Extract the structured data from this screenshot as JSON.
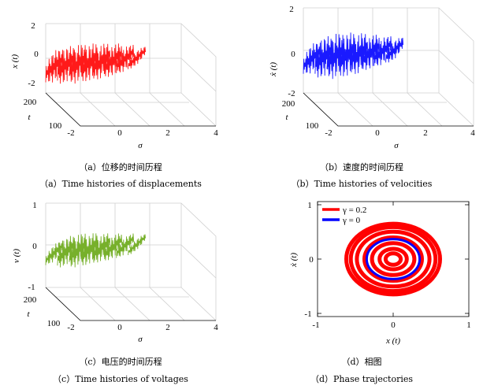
{
  "chart_data": [
    {
      "type": "line",
      "panel": "a",
      "xlabel": "σ",
      "ylabel": "t",
      "zlabel": "x (t)",
      "x_ticks": [
        "-2",
        "0",
        "2",
        "4"
      ],
      "y_ticks": [
        "100",
        "200"
      ],
      "z_ticks": [
        "-2",
        "0",
        "2"
      ],
      "xlim": [
        -2,
        4
      ],
      "zlim": [
        -2.5,
        2.5
      ],
      "series": [
        {
          "color": "#ff1a1a",
          "sigma_start": [
            -2.0,
            -1.4,
            -0.8,
            -0.2,
            0.4,
            1.0,
            1.6,
            2.2
          ],
          "amplitude": [
            1.3,
            1.5,
            1.6,
            1.55,
            1.45,
            1.3,
            1.0,
            0.6
          ]
        }
      ],
      "caption_cn": "（a）位移的时间历程",
      "caption_en": "（a）Time histories of displacements"
    },
    {
      "type": "line",
      "panel": "b",
      "xlabel": "σ",
      "ylabel": "t",
      "zlabel": "ẋ (t)",
      "x_ticks": [
        "-2",
        "0",
        "2",
        "4"
      ],
      "y_ticks": [
        "100",
        "200"
      ],
      "z_ticks": [
        "-2",
        "0",
        "2"
      ],
      "xlim": [
        -2,
        4
      ],
      "zlim": [
        -2.5,
        2.5
      ],
      "series": [
        {
          "color": "#1a1aff",
          "sigma_start": [
            -2.0,
            -1.4,
            -0.8,
            -0.2,
            0.4,
            1.0,
            1.6,
            2.2
          ],
          "amplitude": [
            1.2,
            1.7,
            1.9,
            1.85,
            1.7,
            1.4,
            1.1,
            0.8
          ]
        }
      ],
      "caption_cn": "（b）速度的时间历程",
      "caption_en": "（b）Time histories of velocities"
    },
    {
      "type": "line",
      "panel": "c",
      "xlabel": "σ",
      "ylabel": "t",
      "zlabel": "v (t)",
      "x_ticks": [
        "-2",
        "0",
        "2",
        "4"
      ],
      "y_ticks": [
        "100",
        "200"
      ],
      "z_ticks": [
        "-1",
        "0",
        "1"
      ],
      "xlim": [
        -2,
        4
      ],
      "zlim": [
        -1.2,
        1.2
      ],
      "series": [
        {
          "color": "#77b02b",
          "sigma_start": [
            -2.0,
            -1.4,
            -0.8,
            -0.2,
            0.4,
            1.0,
            1.6,
            2.2
          ],
          "amplitude": [
            0.45,
            0.75,
            0.85,
            0.8,
            0.7,
            0.6,
            0.45,
            0.3
          ]
        }
      ],
      "caption_cn": "（c）电压的时间历程",
      "caption_en": "（c）Time histories of voltages"
    },
    {
      "type": "line",
      "panel": "d",
      "xlabel": "x (t)",
      "ylabel": "ẋ (t)",
      "xlim": [
        -1,
        1
      ],
      "ylim": [
        -1,
        1
      ],
      "x_ticks": [
        "-1",
        "0",
        "1"
      ],
      "y_ticks": [
        "-1",
        "0",
        "1"
      ],
      "legend_position": "top-left",
      "series": [
        {
          "name": "γ = 0.2",
          "color": "#ff0000",
          "center": [
            0,
            0
          ],
          "radii": [
            0.1,
            0.18,
            0.28,
            0.38,
            0.48,
            0.56,
            0.62
          ]
        },
        {
          "name": "γ = 0",
          "color": "#0000ff",
          "center": [
            0,
            0
          ],
          "radii": [
            0.35
          ]
        }
      ],
      "caption_cn": "（d）相图",
      "caption_en": "（d）Phase trajectories"
    }
  ]
}
